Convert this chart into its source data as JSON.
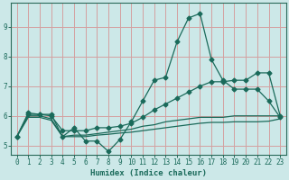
{
  "xlabel": "Humidex (Indice chaleur)",
  "bg_color": "#cce8e8",
  "grid_color": "#d4a0a0",
  "line_color": "#1a6a5a",
  "xlim": [
    -0.5,
    23.5
  ],
  "ylim": [
    4.7,
    9.8
  ],
  "xticks": [
    0,
    1,
    2,
    3,
    4,
    5,
    6,
    7,
    8,
    9,
    10,
    11,
    12,
    13,
    14,
    15,
    16,
    17,
    18,
    19,
    20,
    21,
    22,
    23
  ],
  "yticks": [
    5,
    6,
    7,
    8,
    9
  ],
  "line1_x": [
    0,
    1,
    2,
    3,
    4,
    5,
    6,
    7,
    8,
    9,
    10,
    11,
    12,
    13,
    14,
    15,
    16,
    17,
    18,
    19,
    20,
    21,
    22,
    23
  ],
  "line1_y": [
    5.3,
    6.1,
    6.05,
    6.05,
    5.3,
    5.6,
    5.15,
    5.15,
    4.8,
    5.2,
    5.8,
    6.5,
    7.2,
    7.3,
    8.5,
    9.3,
    9.45,
    7.9,
    7.2,
    6.9,
    6.9,
    6.9,
    6.5,
    5.95
  ],
  "line2_x": [
    0,
    1,
    2,
    3,
    4,
    5,
    6,
    7,
    8,
    9,
    10,
    11,
    12,
    13,
    14,
    15,
    16,
    17,
    18,
    19,
    20,
    21,
    22,
    23
  ],
  "line2_y": [
    5.3,
    6.05,
    6.05,
    6.0,
    5.5,
    5.5,
    5.5,
    5.6,
    5.6,
    5.65,
    5.75,
    5.95,
    6.2,
    6.4,
    6.6,
    6.8,
    7.0,
    7.15,
    7.15,
    7.2,
    7.2,
    7.45,
    7.45,
    6.0
  ],
  "line3_x": [
    0,
    1,
    2,
    3,
    4,
    5,
    6,
    7,
    8,
    9,
    10,
    11,
    12,
    13,
    14,
    15,
    16,
    17,
    18,
    19,
    20,
    21,
    22,
    23
  ],
  "line3_y": [
    5.3,
    6.0,
    6.0,
    5.9,
    5.3,
    5.35,
    5.35,
    5.4,
    5.45,
    5.5,
    5.55,
    5.65,
    5.7,
    5.8,
    5.85,
    5.9,
    5.95,
    5.95,
    5.95,
    6.0,
    6.0,
    6.0,
    6.0,
    6.0
  ],
  "line4_x": [
    0,
    1,
    2,
    3,
    4,
    5,
    6,
    7,
    8,
    9,
    10,
    11,
    12,
    13,
    14,
    15,
    16,
    17,
    18,
    19,
    20,
    21,
    22,
    23
  ],
  "line4_y": [
    5.3,
    5.95,
    5.95,
    5.85,
    5.3,
    5.3,
    5.3,
    5.35,
    5.38,
    5.42,
    5.45,
    5.5,
    5.55,
    5.6,
    5.65,
    5.7,
    5.75,
    5.78,
    5.78,
    5.8,
    5.8,
    5.8,
    5.82,
    5.9
  ]
}
